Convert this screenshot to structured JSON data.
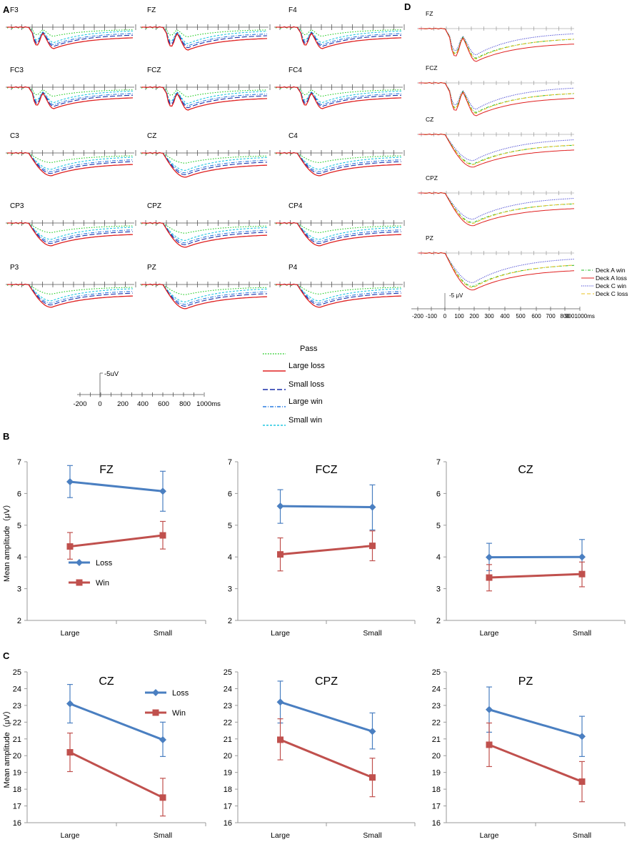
{
  "panel_labels": {
    "a": "A",
    "b": "B",
    "c": "C",
    "d": "D"
  },
  "colors": {
    "pass": "#22cc22",
    "large_loss": "#e02020",
    "small_loss": "#1a2fa8",
    "large_win": "#2a7de0",
    "small_win": "#20c8e0",
    "deck_a_win": "#22bb22",
    "deck_a_loss": "#e02020",
    "deck_c_win": "#3a3ad0",
    "deck_c_loss": "#e8c020",
    "loss_line": "#4a7fc1",
    "win_line": "#c0504d"
  },
  "panel_a": {
    "electrodes": [
      [
        "F3",
        "FZ",
        "F4"
      ],
      [
        "FC3",
        "FCZ",
        "FC4"
      ],
      [
        "C3",
        "CZ",
        "C4"
      ],
      [
        "CP3",
        "CPZ",
        "CP4"
      ],
      [
        "P3",
        "PZ",
        "P4"
      ]
    ],
    "scale_label": "-5uV",
    "axis_ticks": [
      "-200",
      "0",
      "200",
      "400",
      "600",
      "800",
      "1000ms"
    ],
    "legend": [
      "Pass",
      "Large loss",
      "Small loss",
      "Large win",
      "Small win"
    ]
  },
  "panel_d": {
    "electrodes": [
      "FZ",
      "FCZ",
      "CZ",
      "CPZ",
      "PZ"
    ],
    "scale_label": "-5 μV",
    "axis_ticks": [
      "-200",
      "-100",
      "0",
      "100",
      "200",
      "300",
      "400",
      "500",
      "600",
      "700",
      "800",
      "9001000ms"
    ],
    "legend": [
      "Deck A win",
      "Deck A loss",
      "Deck C win",
      "Deck C loss"
    ]
  },
  "chart_data": [
    {
      "panel": "B",
      "type": "line",
      "title": "FZ",
      "categories": [
        "Large",
        "Small"
      ],
      "ylabel": "Mean amplitude（μV）",
      "ylim": [
        2,
        7
      ],
      "yticks": [
        "2",
        "3",
        "4",
        "5",
        "6",
        "7"
      ],
      "legend": [
        "Loss",
        "Win"
      ],
      "series": [
        {
          "name": "Loss",
          "values": [
            6.37,
            6.07
          ],
          "err_hi": [
            6.88,
            6.7
          ],
          "err_lo": [
            5.87,
            5.44
          ]
        },
        {
          "name": "Win",
          "values": [
            4.33,
            4.68
          ],
          "err_hi": [
            4.77,
            5.12
          ],
          "err_lo": [
            3.93,
            4.25
          ]
        }
      ]
    },
    {
      "panel": "B",
      "type": "line",
      "title": "FCZ",
      "categories": [
        "Large",
        "Small"
      ],
      "ylabel": "",
      "ylim": [
        2,
        7
      ],
      "yticks": [
        "2",
        "3",
        "4",
        "5",
        "6",
        "7"
      ],
      "series": [
        {
          "name": "Loss",
          "values": [
            5.6,
            5.57
          ],
          "err_hi": [
            6.12,
            6.27
          ],
          "err_lo": [
            5.06,
            4.85
          ]
        },
        {
          "name": "Win",
          "values": [
            4.08,
            4.35
          ],
          "err_hi": [
            4.6,
            4.82
          ],
          "err_lo": [
            3.56,
            3.88
          ]
        }
      ]
    },
    {
      "panel": "B",
      "type": "line",
      "title": "CZ",
      "categories": [
        "Large",
        "Small"
      ],
      "ylabel": "",
      "ylim": [
        2,
        7
      ],
      "yticks": [
        "2",
        "3",
        "4",
        "5",
        "6",
        "7"
      ],
      "series": [
        {
          "name": "Loss",
          "values": [
            3.99,
            4.0
          ],
          "err_hi": [
            4.43,
            4.55
          ],
          "err_lo": [
            3.57,
            3.45
          ]
        },
        {
          "name": "Win",
          "values": [
            3.35,
            3.46
          ],
          "err_hi": [
            3.76,
            3.84
          ],
          "err_lo": [
            2.93,
            3.06
          ]
        }
      ]
    },
    {
      "panel": "C",
      "type": "line",
      "title": "CZ",
      "categories": [
        "Large",
        "Small"
      ],
      "ylabel": "Mean amplitude（μV）",
      "ylim": [
        16,
        25
      ],
      "yticks": [
        "16",
        "17",
        "18",
        "19",
        "20",
        "21",
        "22",
        "23",
        "24",
        "25"
      ],
      "legend": [
        "Loss",
        "Win"
      ],
      "series": [
        {
          "name": "Loss",
          "values": [
            23.1,
            20.95
          ],
          "err_hi": [
            24.25,
            22.0
          ],
          "err_lo": [
            21.95,
            19.95
          ]
        },
        {
          "name": "Win",
          "values": [
            20.2,
            17.5
          ],
          "err_hi": [
            21.35,
            18.65
          ],
          "err_lo": [
            19.05,
            16.4
          ]
        }
      ]
    },
    {
      "panel": "C",
      "type": "line",
      "title": "CPZ",
      "categories": [
        "Large",
        "Small"
      ],
      "ylabel": "",
      "ylim": [
        16,
        25
      ],
      "yticks": [
        "16",
        "17",
        "18",
        "19",
        "20",
        "21",
        "22",
        "23",
        "24",
        "25"
      ],
      "series": [
        {
          "name": "Loss",
          "values": [
            23.2,
            21.45
          ],
          "err_hi": [
            24.45,
            22.55
          ],
          "err_lo": [
            21.95,
            20.4
          ]
        },
        {
          "name": "Win",
          "values": [
            20.95,
            18.7
          ],
          "err_hi": [
            22.2,
            19.85
          ],
          "err_lo": [
            19.75,
            17.55
          ]
        }
      ]
    },
    {
      "panel": "C",
      "type": "line",
      "title": "PZ",
      "categories": [
        "Large",
        "Small"
      ],
      "ylabel": "",
      "ylim": [
        16,
        25
      ],
      "yticks": [
        "16",
        "17",
        "18",
        "19",
        "20",
        "21",
        "22",
        "23",
        "24",
        "25"
      ],
      "series": [
        {
          "name": "Loss",
          "values": [
            22.75,
            21.15
          ],
          "err_hi": [
            24.1,
            22.35
          ],
          "err_lo": [
            21.4,
            19.95
          ]
        },
        {
          "name": "Win",
          "values": [
            20.65,
            18.45
          ],
          "err_hi": [
            21.95,
            19.65
          ],
          "err_lo": [
            19.35,
            17.25
          ]
        }
      ]
    }
  ]
}
